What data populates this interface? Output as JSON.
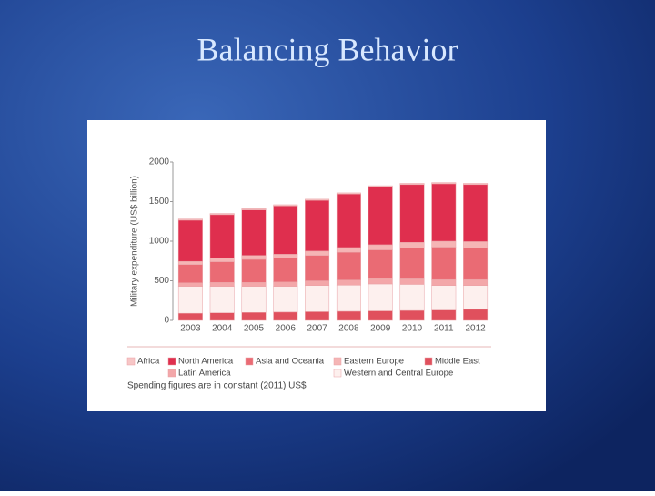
{
  "slide_title": "Balancing Behavior",
  "chart_data": {
    "type": "stacked_bar",
    "ylabel": "Military expenditure (US$ billion)",
    "note": "Spending figures are in constant (2011) US$",
    "categories": [
      "2003",
      "2004",
      "2005",
      "2006",
      "2007",
      "2008",
      "2009",
      "2010",
      "2011",
      "2012"
    ],
    "ylim": [
      0,
      2000
    ],
    "yticks": [
      0,
      500,
      1000,
      1500,
      2000
    ],
    "series": [
      {
        "name": "Middle East",
        "color": "#e0505d",
        "values": [
          90,
          95,
          100,
          105,
          110,
          115,
          120,
          125,
          130,
          140
        ]
      },
      {
        "name": "Western and Central Europe",
        "color": "#fdf0ee",
        "values": [
          340,
          335,
          330,
          325,
          330,
          330,
          340,
          330,
          310,
          300
        ]
      },
      {
        "name": "Latin America",
        "color": "#f3a7a9",
        "values": [
          45,
          50,
          50,
          55,
          60,
          65,
          70,
          70,
          75,
          75
        ]
      },
      {
        "name": "Asia and Oceania",
        "color": "#ea6b74",
        "values": [
          230,
          260,
          290,
          300,
          320,
          350,
          360,
          390,
          410,
          400
        ]
      },
      {
        "name": "Eastern Europe",
        "color": "#f5b5b5",
        "values": [
          40,
          45,
          50,
          50,
          55,
          60,
          65,
          70,
          75,
          80
        ]
      },
      {
        "name": "North America",
        "color": "#df2f4e",
        "values": [
          520,
          550,
          575,
          610,
          640,
          675,
          730,
          730,
          725,
          720
        ]
      },
      {
        "name": "Africa",
        "color": "#f7c6c6",
        "values": [
          15,
          15,
          15,
          15,
          15,
          15,
          15,
          15,
          15,
          15
        ]
      }
    ]
  }
}
